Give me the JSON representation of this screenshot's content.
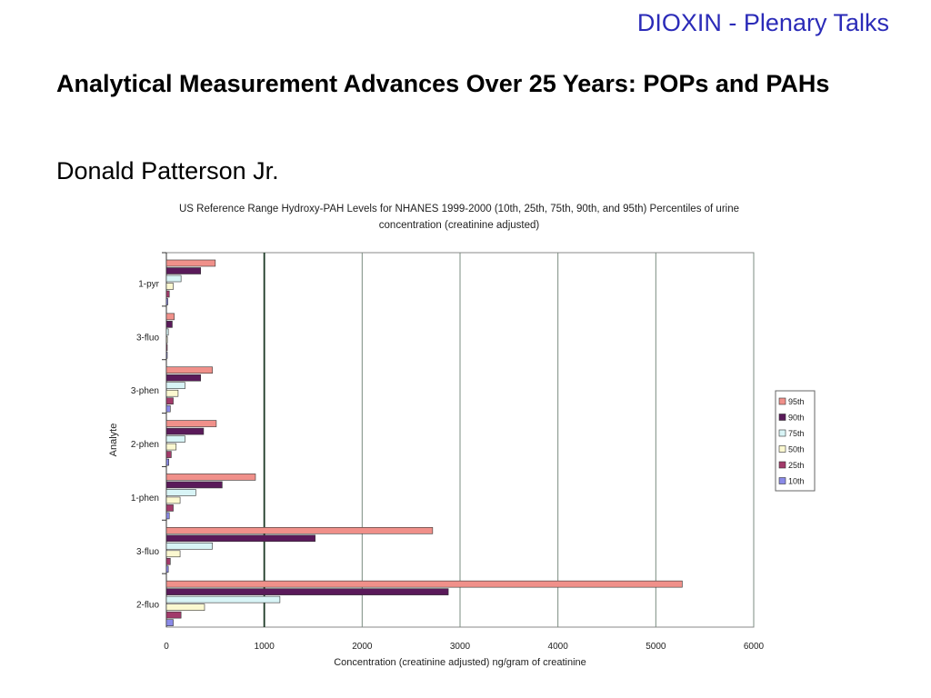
{
  "header": {
    "tag": "DIOXIN - Plenary Talks"
  },
  "slide": {
    "title": "Analytical Measurement Advances Over 25 Years: POPs and PAHs",
    "author": "Donald Patterson Jr."
  },
  "chart_data": {
    "type": "bar",
    "orientation": "horizontal",
    "title": "US Reference Range Hydroxy-PAH Levels for NHANES 1999-2000 (10th, 25th, 75th, 90th, and 95th) Percentiles of urine concentration (creatinine adjusted)",
    "xlabel": "Concentration (creatinine adjusted) ng/gram of creatinine",
    "ylabel": "Analyte",
    "xlim": [
      0,
      6000
    ],
    "xticks": [
      0,
      1000,
      2000,
      3000,
      4000,
      5000,
      6000
    ],
    "grid": true,
    "legend_position": "right",
    "categories": [
      "1-pyr",
      "3-fluo",
      "3-phen",
      "2-phen",
      "1-phen",
      "3-fluo",
      "2-fluo"
    ],
    "series": [
      {
        "name": "95th",
        "color": "#f0908a",
        "values": [
          500,
          80,
          470,
          510,
          910,
          2720,
          5270
        ]
      },
      {
        "name": "90th",
        "color": "#5a1a5a",
        "values": [
          350,
          60,
          350,
          380,
          570,
          1520,
          2880
        ]
      },
      {
        "name": "75th",
        "color": "#d8f4f6",
        "values": [
          150,
          20,
          190,
          190,
          300,
          470,
          1160
        ]
      },
      {
        "name": "50th",
        "color": "#fbf8d0",
        "values": [
          70,
          10,
          120,
          100,
          140,
          140,
          390
        ]
      },
      {
        "name": "25th",
        "color": "#a23a6a",
        "values": [
          30,
          5,
          70,
          50,
          70,
          40,
          150
        ]
      },
      {
        "name": "10th",
        "color": "#8a8ae8",
        "values": [
          15,
          3,
          40,
          25,
          30,
          20,
          70
        ]
      }
    ]
  }
}
